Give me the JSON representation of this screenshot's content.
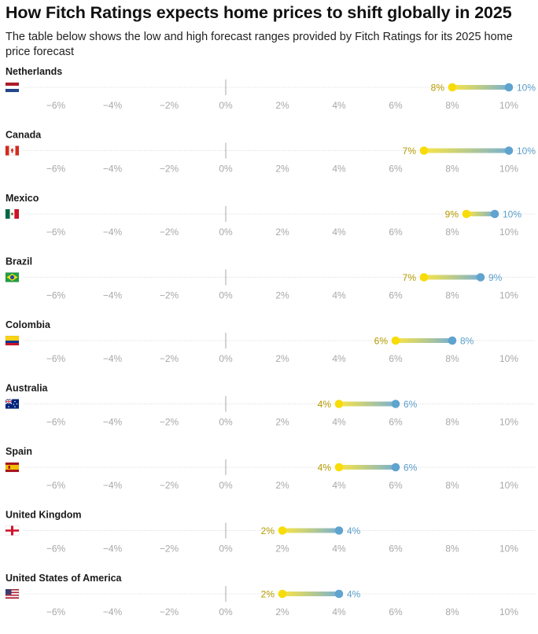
{
  "title": "How Fitch Ratings expects home prices to shift globally in 2025",
  "subtitle": "The table below shows the low and high forecast ranges provided by Fitch Ratings for its 2025 home price forecast",
  "colors": {
    "low": "#f7dc0a",
    "high": "#5fa3cf",
    "low_label": "#b49a00",
    "high_label": "#5b9ec9",
    "tick": "#a8a8a8",
    "gridline": "#d7d7d7"
  },
  "chart_data": {
    "type": "dumbbell",
    "xlim": [
      -7,
      11
    ],
    "xticks": [
      -6,
      -4,
      -2,
      0,
      2,
      4,
      6,
      8,
      10
    ],
    "tick_labels": [
      "−6%",
      "−4%",
      "−2%",
      "0%",
      "2%",
      "4%",
      "6%",
      "8%",
      "10%"
    ],
    "series": [
      {
        "name": "Netherlands",
        "flag": "netherlands-flag",
        "low": 8,
        "high": 10,
        "low_label": "8%",
        "high_label": "10%"
      },
      {
        "name": "Canada",
        "flag": "canada-flag",
        "low": 7,
        "high": 10,
        "low_label": "7%",
        "high_label": "10%"
      },
      {
        "name": "Mexico",
        "flag": "mexico-flag",
        "low": 8.5,
        "high": 9.5,
        "low_label": "9%",
        "high_label": "10%"
      },
      {
        "name": "Brazil",
        "flag": "brazil-flag",
        "low": 7,
        "high": 9,
        "low_label": "7%",
        "high_label": "9%"
      },
      {
        "name": "Colombia",
        "flag": "colombia-flag",
        "low": 6,
        "high": 8,
        "low_label": "6%",
        "high_label": "8%"
      },
      {
        "name": "Australia",
        "flag": "australia-flag",
        "low": 4,
        "high": 6,
        "low_label": "4%",
        "high_label": "6%"
      },
      {
        "name": "Spain",
        "flag": "spain-flag",
        "low": 4,
        "high": 6,
        "low_label": "4%",
        "high_label": "6%"
      },
      {
        "name": "United Kingdom",
        "flag": "england-flag",
        "low": 2,
        "high": 4,
        "low_label": "2%",
        "high_label": "4%"
      },
      {
        "name": "United States of America",
        "flag": "usa-flag",
        "low": 2,
        "high": 4,
        "low_label": "2%",
        "high_label": "4%"
      }
    ]
  }
}
